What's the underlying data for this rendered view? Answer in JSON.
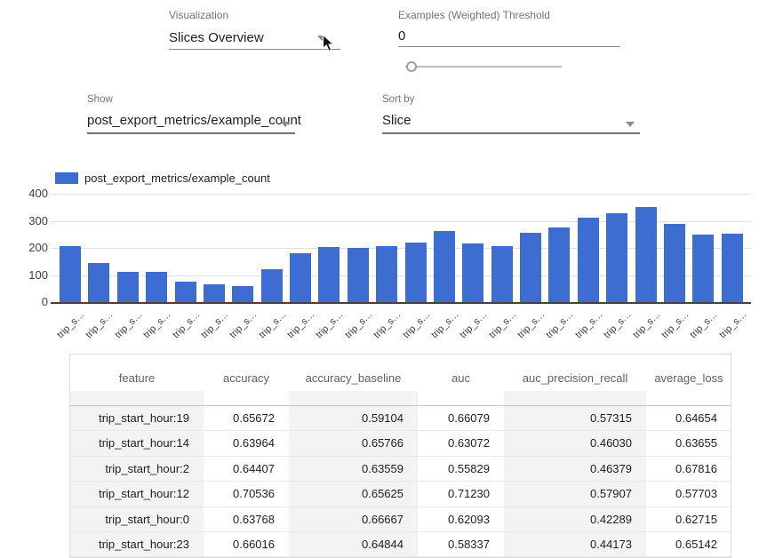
{
  "controls": {
    "visualization": {
      "label": "Visualization",
      "value": "Slices Overview"
    },
    "threshold": {
      "label": "Examples (Weighted) Threshold",
      "value": "0"
    },
    "show": {
      "label": "Show",
      "value": "post_export_metrics/example_count"
    },
    "sort_by": {
      "label": "Sort by",
      "value": "Slice"
    }
  },
  "chart_data": {
    "type": "bar",
    "title": "",
    "legend": "post_export_metrics/example_count",
    "legend_position": "top",
    "bar_color": "#3d6dd1",
    "grid": true,
    "ylim": [
      0,
      400
    ],
    "yticks": [
      0,
      100,
      200,
      300,
      400
    ],
    "categories": [
      "trip_s…",
      "trip_s…",
      "trip_s…",
      "trip_s…",
      "trip_s…",
      "trip_s…",
      "trip_s…",
      "trip_s…",
      "trip_s…",
      "trip_s…",
      "trip_s…",
      "trip_s…",
      "trip_s…",
      "trip_s…",
      "trip_s…",
      "trip_s…",
      "trip_s…",
      "trip_s…",
      "trip_s…",
      "trip_s…",
      "trip_s…",
      "trip_s…",
      "trip_s…",
      "trip_s…"
    ],
    "values": [
      205,
      145,
      113,
      110,
      75,
      65,
      60,
      120,
      180,
      203,
      199,
      208,
      219,
      262,
      215,
      206,
      257,
      274,
      310,
      328,
      350,
      288,
      250,
      254
    ]
  },
  "table": {
    "columns": [
      "feature",
      "accuracy",
      "accuracy_baseline",
      "auc",
      "auc_precision_recall",
      "average_loss"
    ],
    "rows": [
      [
        "trip_start_hour:19",
        "0.65672",
        "0.59104",
        "0.66079",
        "0.57315",
        "0.64654"
      ],
      [
        "trip_start_hour:14",
        "0.63964",
        "0.65766",
        "0.63072",
        "0.46030",
        "0.63655"
      ],
      [
        "trip_start_hour:2",
        "0.64407",
        "0.63559",
        "0.55829",
        "0.46379",
        "0.67816"
      ],
      [
        "trip_start_hour:12",
        "0.70536",
        "0.65625",
        "0.71230",
        "0.57907",
        "0.57703"
      ],
      [
        "trip_start_hour:0",
        "0.63768",
        "0.66667",
        "0.62093",
        "0.42289",
        "0.62715"
      ],
      [
        "trip_start_hour:23",
        "0.66016",
        "0.64844",
        "0.58337",
        "0.44173",
        "0.65142"
      ]
    ]
  }
}
